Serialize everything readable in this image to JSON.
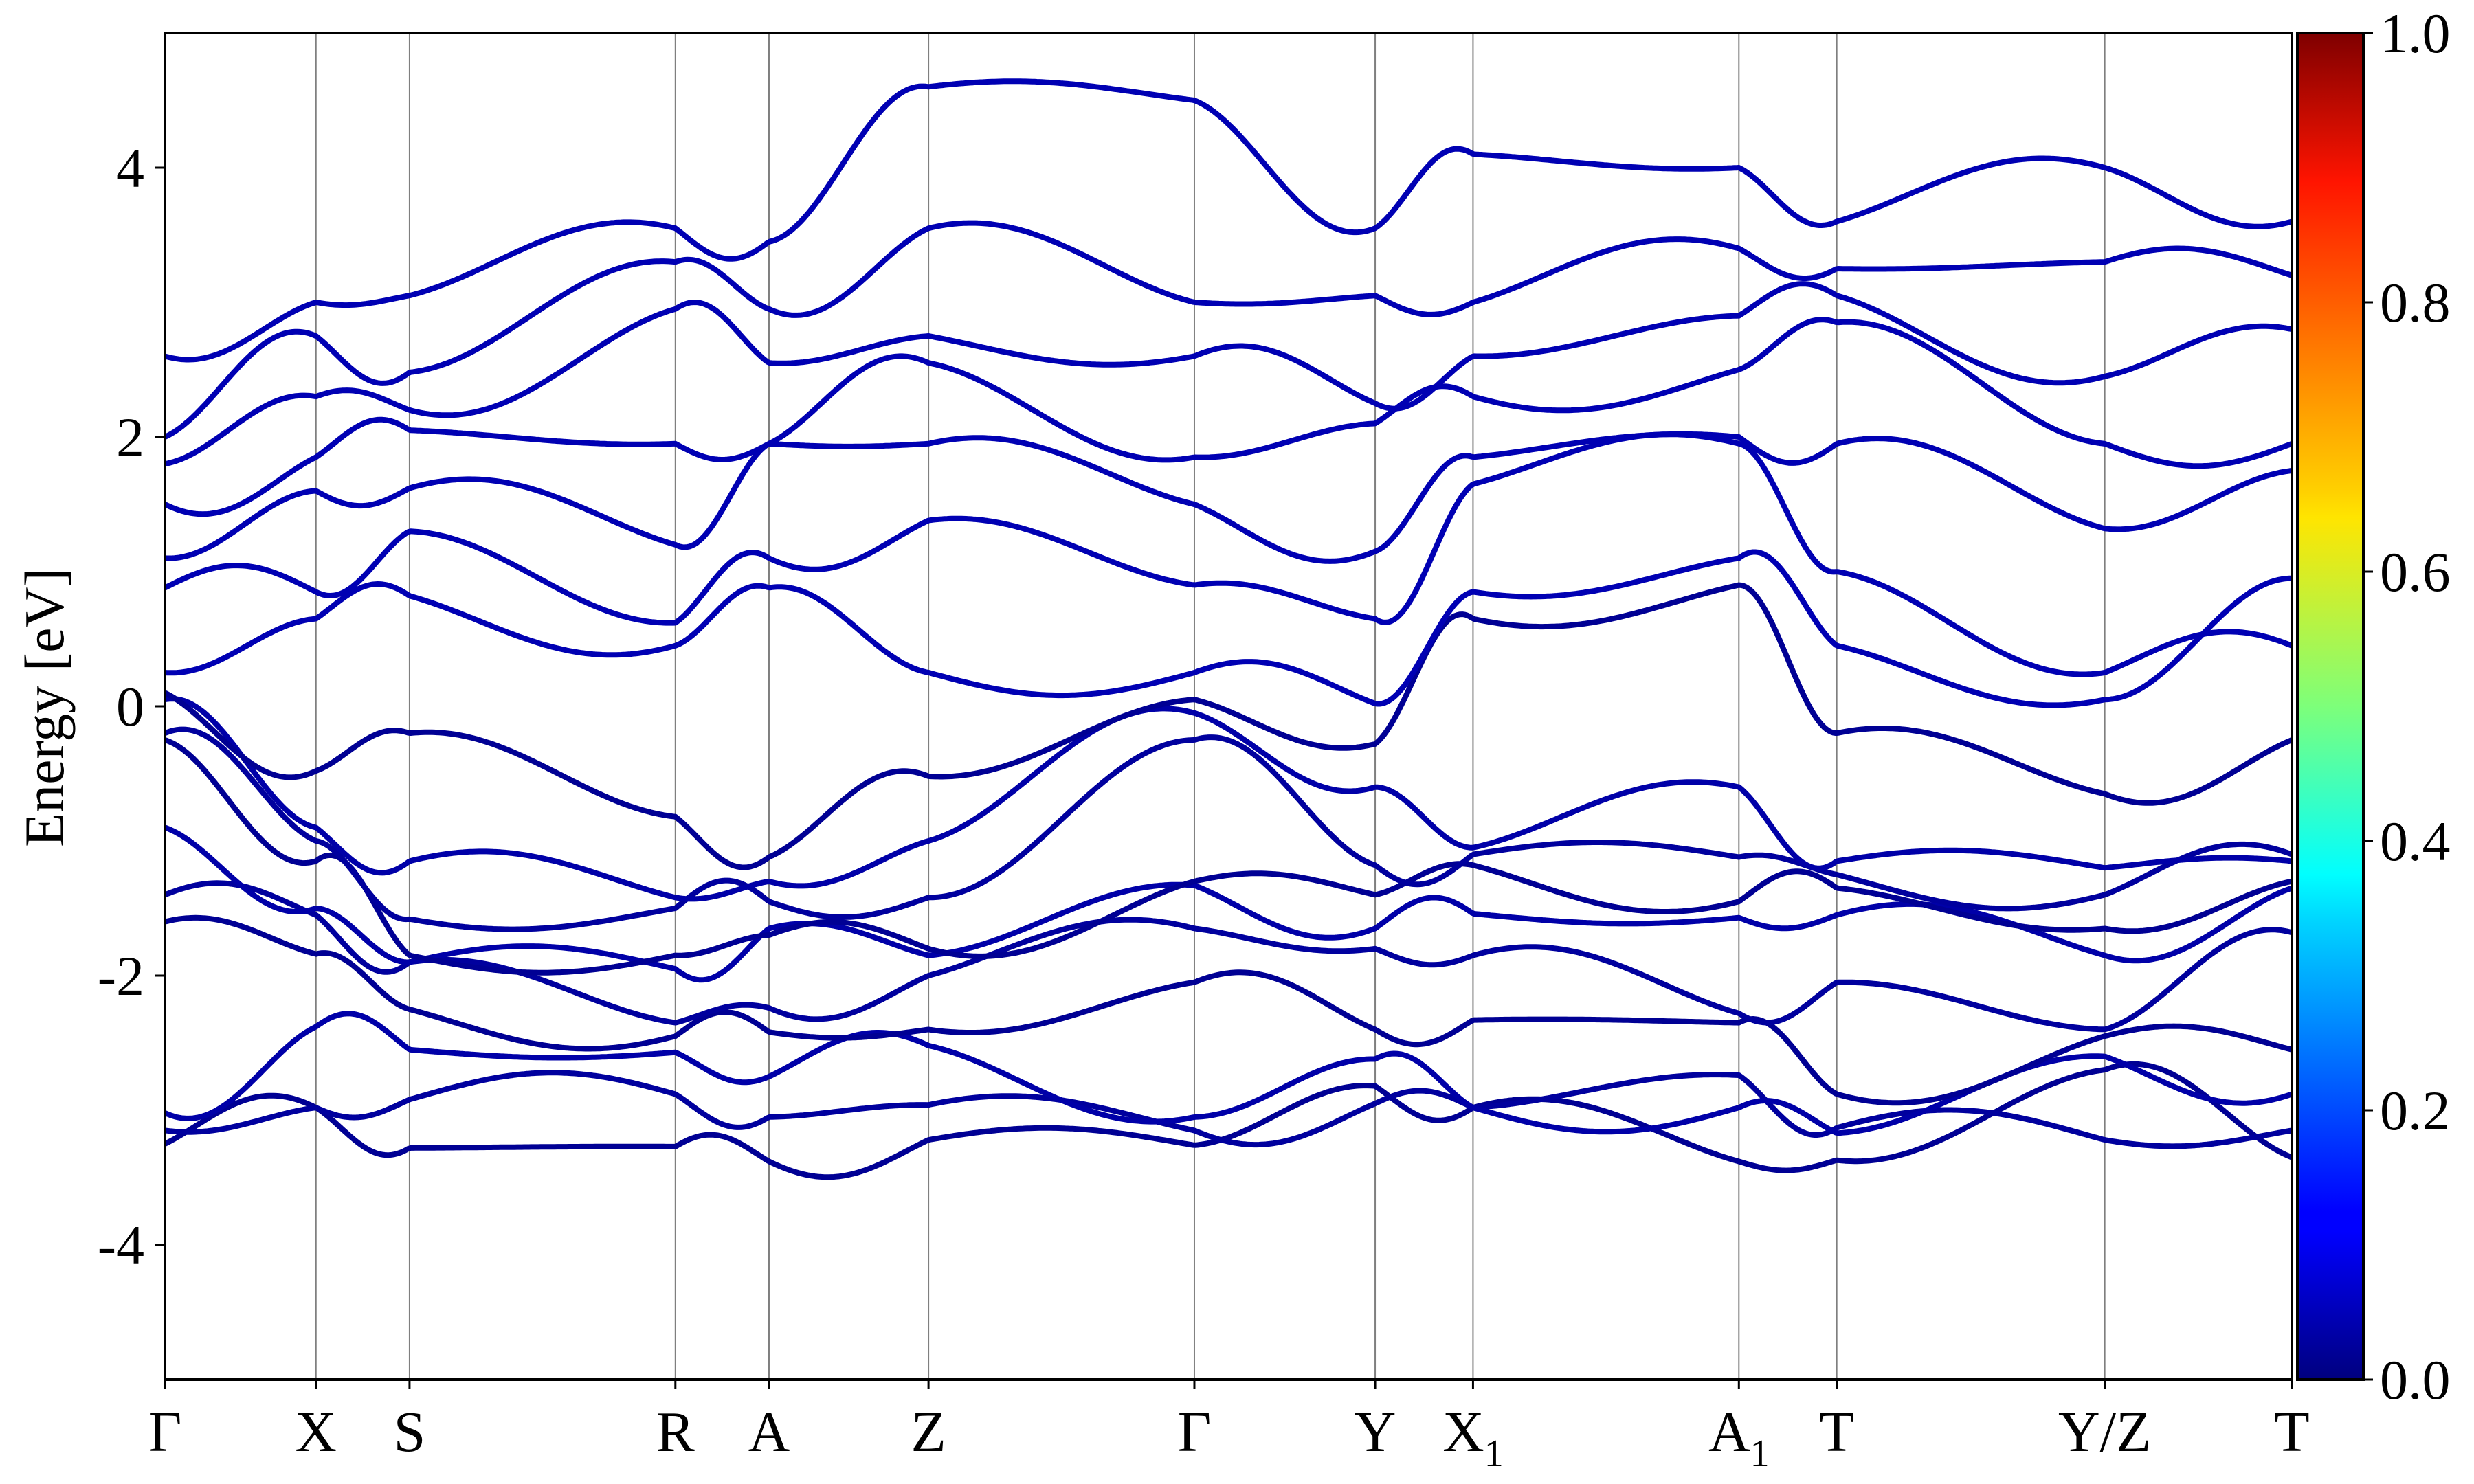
{
  "chart_data": {
    "type": "line",
    "ylabel": "Energy [eV]",
    "ylim": [
      -5,
      5
    ],
    "yticks": [
      4,
      2,
      0,
      -2,
      -4
    ],
    "ytick_labels": [
      "4",
      "2",
      "0",
      "-2",
      "-4"
    ],
    "kpoints": [
      {
        "label": "Γ",
        "sub": "",
        "x": 0.0
      },
      {
        "label": "X",
        "sub": "",
        "x": 0.071
      },
      {
        "label": "S",
        "sub": "",
        "x": 0.115
      },
      {
        "label": "R",
        "sub": "",
        "x": 0.24
      },
      {
        "label": "A",
        "sub": "",
        "x": 0.284
      },
      {
        "label": "Z",
        "sub": "",
        "x": 0.359
      },
      {
        "label": "Γ",
        "sub": "",
        "x": 0.484
      },
      {
        "label": "Y",
        "sub": "",
        "x": 0.569
      },
      {
        "label": "X",
        "sub": "1",
        "x": 0.615
      },
      {
        "label": "A",
        "sub": "1",
        "x": 0.74
      },
      {
        "label": "T",
        "sub": "",
        "x": 0.786
      },
      {
        "label": "Y/Z",
        "sub": "",
        "x": 0.912
      },
      {
        "label": "T",
        "sub": "",
        "x": 1.0
      }
    ],
    "colorbar": {
      "colormap": "jet",
      "range": [
        0.0,
        1.0
      ],
      "ticks": [
        "1.0",
        "0.8",
        "0.6",
        "0.4",
        "0.2",
        "0.0"
      ]
    },
    "band_color_value": 0.05,
    "bands_sampled_at_kpoints": [
      [
        -3.25,
        -2.98,
        -3.28,
        -3.27,
        -3.38,
        -3.22,
        -3.26,
        -2.82,
        -2.98,
        -3.38,
        -3.37,
        -2.7,
        -3.35
      ],
      [
        -3.15,
        -2.98,
        -2.92,
        -2.88,
        -3.05,
        -2.96,
        -3.15,
        -2.95,
        -2.98,
        -2.74,
        -3.13,
        -3.22,
        -3.15
      ],
      [
        -3.02,
        -2.38,
        -2.55,
        -2.57,
        -2.75,
        -2.52,
        -3.05,
        -2.62,
        -2.98,
        -2.98,
        -3.17,
        -2.6,
        -2.88
      ],
      [
        -1.6,
        -1.84,
        -2.25,
        -2.45,
        -2.42,
        -2.4,
        -2.05,
        -2.4,
        -2.33,
        -2.35,
        -2.88,
        -2.45,
        -2.55
      ],
      [
        -1.4,
        -1.55,
        -1.9,
        -2.35,
        -2.24,
        -2.0,
        -1.65,
        -1.8,
        -1.85,
        -2.28,
        -2.05,
        -2.4,
        -1.68
      ],
      [
        -0.9,
        -1.5,
        -1.9,
        -1.95,
        -1.65,
        -1.85,
        -1.33,
        -1.65,
        -1.54,
        -1.57,
        -1.55,
        -1.85,
        -1.35
      ],
      [
        -0.25,
        -1.15,
        -1.85,
        -1.85,
        -1.7,
        -1.8,
        -1.3,
        -1.4,
        -1.18,
        -1.45,
        -1.35,
        -1.65,
        -1.3
      ],
      [
        -0.2,
        -1.0,
        -1.58,
        -1.5,
        -1.45,
        -1.42,
        -0.25,
        -1.18,
        -1.1,
        -1.12,
        -1.25,
        -1.4,
        -1.1
      ],
      [
        0.05,
        -0.9,
        -1.15,
        -1.42,
        -1.3,
        -1.0,
        -0.05,
        -0.6,
        -1.05,
        -0.6,
        -1.15,
        -1.2,
        -1.15
      ],
      [
        0.1,
        -0.48,
        -0.2,
        -0.82,
        -1.12,
        -0.52,
        0.05,
        -0.28,
        0.65,
        0.9,
        -0.2,
        -0.65,
        -0.25
      ],
      [
        0.25,
        0.65,
        0.82,
        0.45,
        0.88,
        0.25,
        0.25,
        0.02,
        0.85,
        1.1,
        0.45,
        0.05,
        0.95
      ],
      [
        0.88,
        0.85,
        1.3,
        0.62,
        1.1,
        1.38,
        0.9,
        0.65,
        1.65,
        1.95,
        1.0,
        0.25,
        0.45
      ],
      [
        1.1,
        1.6,
        1.62,
        1.2,
        1.95,
        1.95,
        1.5,
        1.15,
        1.85,
        2.0,
        1.95,
        1.32,
        1.75
      ],
      [
        1.5,
        1.85,
        2.05,
        1.95,
        1.95,
        2.55,
        1.85,
        2.1,
        2.3,
        2.5,
        2.85,
        1.95,
        1.95
      ],
      [
        1.8,
        2.3,
        2.2,
        2.95,
        2.55,
        2.75,
        2.6,
        2.25,
        2.6,
        2.9,
        3.05,
        2.45,
        2.8
      ],
      [
        2.0,
        2.75,
        2.48,
        3.3,
        2.95,
        3.55,
        3.0,
        3.05,
        3.0,
        3.4,
        3.25,
        3.3,
        3.2
      ],
      [
        2.6,
        3.0,
        3.05,
        3.55,
        3.45,
        4.6,
        4.5,
        3.55,
        4.1,
        4.0,
        3.6,
        4.0,
        3.6
      ]
    ]
  }
}
